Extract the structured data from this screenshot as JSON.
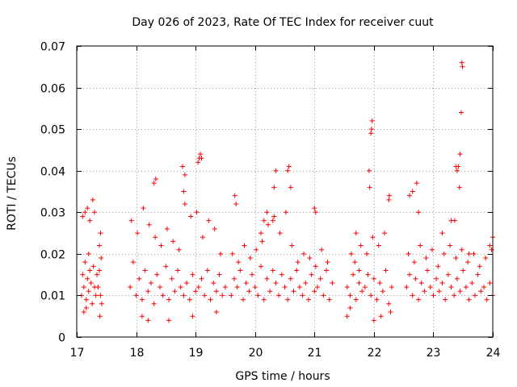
{
  "chart_data": {
    "type": "scatter",
    "title": "Day 026 of 2023, Rate Of TEC Index for receiver cuut",
    "xlabel": "GPS time / hours",
    "ylabel": "ROTI / TECUs",
    "xlim": [
      17,
      24
    ],
    "ylim": [
      0,
      0.07
    ],
    "xticks": [
      17,
      18,
      19,
      20,
      21,
      22,
      23,
      24
    ],
    "xtick_labels": [
      "17",
      "18",
      "19",
      "20",
      "21",
      "22",
      "23",
      "24"
    ],
    "yticks": [
      0,
      0.01,
      0.02,
      0.03,
      0.04,
      0.05,
      0.06,
      0.07
    ],
    "ytick_labels": [
      "0",
      "0.01",
      "0.02",
      "0.03",
      "0.04",
      "0.05",
      "0.06",
      "0.07"
    ],
    "grid": true,
    "marker": "+",
    "color": "#ff0000",
    "series": [
      {
        "name": "ROTI",
        "x": [
          17.08,
          17.1,
          17.12,
          17.14,
          17.16,
          17.18,
          17.2,
          17.22,
          17.24,
          17.26,
          17.28,
          17.3,
          17.32,
          17.34,
          17.1,
          17.14,
          17.18,
          17.22,
          17.27,
          17.3,
          17.12,
          17.16,
          17.2,
          17.36,
          17.38,
          17.4,
          17.42,
          17.38,
          17.4,
          17.41,
          17.39,
          17.9,
          17.95,
          18.0,
          18.05,
          18.1,
          18.15,
          18.2,
          18.25,
          18.3,
          18.35,
          18.4,
          18.45,
          18.5,
          18.55,
          18.6,
          18.65,
          18.7,
          18.75,
          18.8,
          18.85,
          18.9,
          18.95,
          19.0,
          19.05,
          19.1,
          19.15,
          19.2,
          19.25,
          19.3,
          19.35,
          19.4,
          19.45,
          19.5,
          17.92,
          18.02,
          18.12,
          18.22,
          18.32,
          18.42,
          18.52,
          18.62,
          18.72,
          18.82,
          18.92,
          19.02,
          19.12,
          19.22,
          19.32,
          19.42,
          18.78,
          18.8,
          18.82,
          19.04,
          19.06,
          19.08,
          19.1,
          18.3,
          18.33,
          18.1,
          18.2,
          18.55,
          18.95,
          19.35,
          19.6,
          19.65,
          19.7,
          19.75,
          19.8,
          19.85,
          19.9,
          19.95,
          20.0,
          20.05,
          20.1,
          20.15,
          20.2,
          20.25,
          20.3,
          20.35,
          20.4,
          20.45,
          20.5,
          20.55,
          20.6,
          20.65,
          20.7,
          20.75,
          20.8,
          20.85,
          20.9,
          20.95,
          21.0,
          21.05,
          21.1,
          21.15,
          21.2,
          21.25,
          21.3,
          19.62,
          19.72,
          19.82,
          19.92,
          20.02,
          20.12,
          20.22,
          20.32,
          20.42,
          20.52,
          20.62,
          20.72,
          20.82,
          20.92,
          21.02,
          21.12,
          21.22,
          20.3,
          20.32,
          20.35,
          20.55,
          20.57,
          20.6,
          21.0,
          21.02,
          19.66,
          19.68,
          20.1,
          20.15,
          20.2,
          21.55,
          21.6,
          21.65,
          21.7,
          21.75,
          21.8,
          21.55,
          21.62,
          21.7,
          21.78,
          21.6,
          21.68,
          21.75,
          21.85,
          21.9,
          21.95,
          22.0,
          22.05,
          22.1,
          22.15,
          22.2,
          22.25,
          22.3,
          21.88,
          21.98,
          22.08,
          22.18,
          22.28,
          21.95,
          21.96,
          21.97,
          21.92,
          21.93,
          22.25,
          22.26,
          22.0,
          22.12,
          22.55,
          22.6,
          22.65,
          22.7,
          22.75,
          22.8,
          22.85,
          22.9,
          22.95,
          23.0,
          23.05,
          23.1,
          23.15,
          23.2,
          23.25,
          23.3,
          23.35,
          23.4,
          23.45,
          23.5,
          23.55,
          23.6,
          23.65,
          23.7,
          23.75,
          23.8,
          23.85,
          23.9,
          23.95,
          24.0,
          22.58,
          22.68,
          22.78,
          22.88,
          22.98,
          23.08,
          23.18,
          23.28,
          23.38,
          23.48,
          23.58,
          23.68,
          23.78,
          23.88,
          23.98,
          23.48,
          23.49,
          23.47,
          23.45,
          23.42,
          23.44,
          23.4,
          23.38,
          23.36,
          22.65,
          22.6,
          22.72,
          22.75,
          23.15,
          23.3,
          23.6,
          23.95,
          24.0
        ],
        "y": [
          0.01,
          0.015,
          0.012,
          0.018,
          0.009,
          0.014,
          0.011,
          0.016,
          0.013,
          0.008,
          0.017,
          0.012,
          0.01,
          0.015,
          0.029,
          0.03,
          0.031,
          0.028,
          0.033,
          0.03,
          0.006,
          0.007,
          0.02,
          0.012,
          0.016,
          0.01,
          0.008,
          0.022,
          0.025,
          0.019,
          0.005,
          0.012,
          0.018,
          0.01,
          0.014,
          0.009,
          0.016,
          0.011,
          0.013,
          0.008,
          0.015,
          0.012,
          0.01,
          0.017,
          0.009,
          0.014,
          0.011,
          0.016,
          0.012,
          0.01,
          0.013,
          0.009,
          0.015,
          0.011,
          0.012,
          0.014,
          0.01,
          0.016,
          0.009,
          0.013,
          0.011,
          0.015,
          0.01,
          0.012,
          0.028,
          0.025,
          0.031,
          0.027,
          0.024,
          0.022,
          0.026,
          0.023,
          0.021,
          0.039,
          0.029,
          0.03,
          0.024,
          0.028,
          0.026,
          0.02,
          0.041,
          0.035,
          0.032,
          0.042,
          0.043,
          0.044,
          0.043,
          0.037,
          0.038,
          0.005,
          0.004,
          0.004,
          0.005,
          0.006,
          0.01,
          0.014,
          0.012,
          0.016,
          0.009,
          0.013,
          0.011,
          0.015,
          0.012,
          0.01,
          0.017,
          0.009,
          0.014,
          0.011,
          0.016,
          0.013,
          0.01,
          0.015,
          0.012,
          0.009,
          0.014,
          0.011,
          0.016,
          0.012,
          0.01,
          0.013,
          0.009,
          0.015,
          0.011,
          0.012,
          0.014,
          0.01,
          0.016,
          0.009,
          0.013,
          0.02,
          0.018,
          0.022,
          0.019,
          0.021,
          0.023,
          0.027,
          0.036,
          0.025,
          0.03,
          0.022,
          0.018,
          0.02,
          0.019,
          0.017,
          0.021,
          0.018,
          0.028,
          0.029,
          0.04,
          0.04,
          0.041,
          0.036,
          0.031,
          0.03,
          0.034,
          0.032,
          0.025,
          0.028,
          0.03,
          0.012,
          0.01,
          0.015,
          0.009,
          0.013,
          0.011,
          0.005,
          0.02,
          0.025,
          0.022,
          0.007,
          0.018,
          0.016,
          0.012,
          0.015,
          0.01,
          0.014,
          0.009,
          0.013,
          0.011,
          0.016,
          0.008,
          0.012,
          0.02,
          0.024,
          0.022,
          0.025,
          0.006,
          0.049,
          0.05,
          0.052,
          0.04,
          0.036,
          0.033,
          0.034,
          0.004,
          0.005,
          0.012,
          0.015,
          0.01,
          0.014,
          0.009,
          0.013,
          0.011,
          0.016,
          0.012,
          0.01,
          0.014,
          0.011,
          0.013,
          0.009,
          0.015,
          0.012,
          0.01,
          0.014,
          0.011,
          0.016,
          0.012,
          0.009,
          0.013,
          0.01,
          0.015,
          0.011,
          0.012,
          0.009,
          0.013,
          0.01,
          0.02,
          0.018,
          0.022,
          0.019,
          0.021,
          0.017,
          0.02,
          0.022,
          0.019,
          0.021,
          0.018,
          0.02,
          0.017,
          0.019,
          0.021,
          0.066,
          0.065,
          0.054,
          0.044,
          0.041,
          0.036,
          0.04,
          0.041,
          0.028,
          0.035,
          0.034,
          0.037,
          0.03,
          0.025,
          0.028,
          0.02,
          0.022,
          0.024
        ]
      }
    ]
  }
}
